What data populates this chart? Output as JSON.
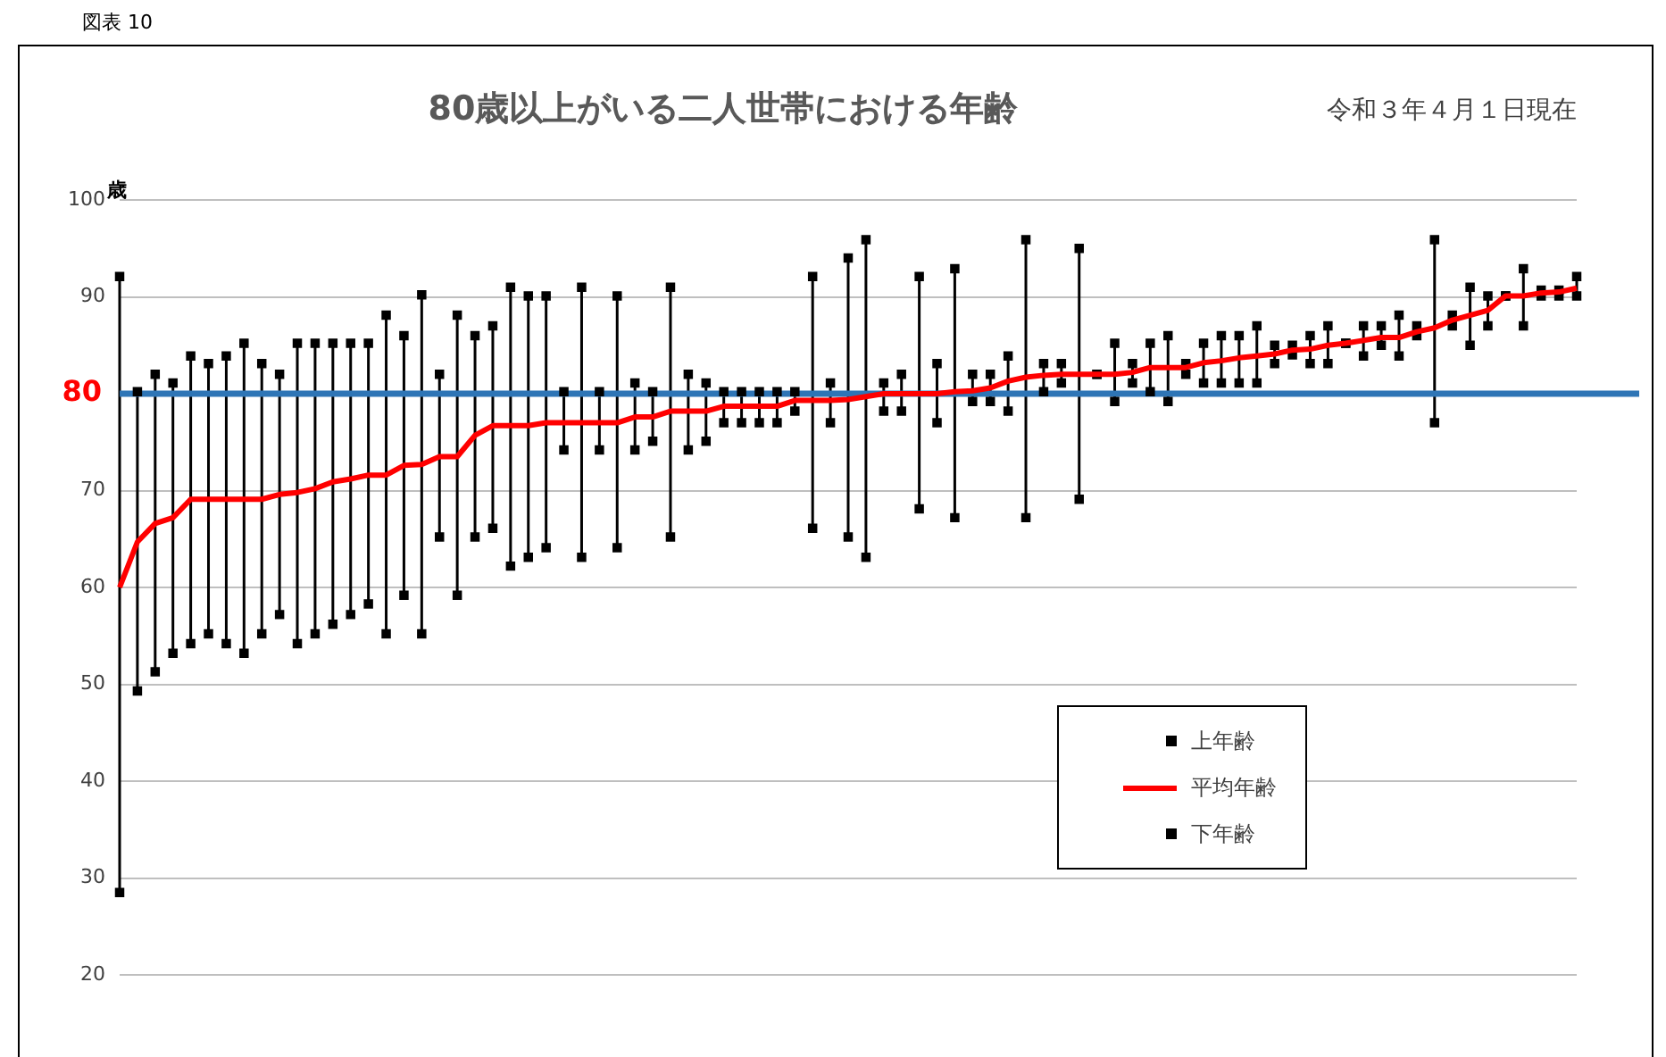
{
  "chart_data": {
    "type": "line",
    "title": "80歳以上がいる二人世帯における年齢",
    "subtitle": "令和３年４月１日現在",
    "ylabel": "歳",
    "annotations": [
      "図表 10"
    ],
    "categories": [
      null,
      null,
      null,
      null,
      null,
      null,
      null,
      null,
      null,
      null,
      null,
      null,
      null,
      null,
      null,
      null,
      null,
      null,
      null,
      null,
      null,
      null,
      null,
      null,
      null,
      null,
      null,
      null,
      null,
      null,
      null,
      null,
      null,
      null,
      null,
      null,
      null,
      null,
      null,
      null,
      null,
      null,
      null,
      null,
      null,
      null,
      null,
      null,
      null,
      null,
      null,
      null,
      null,
      null,
      null,
      null,
      null,
      null,
      null,
      null,
      null,
      null,
      null,
      null,
      null,
      null,
      null,
      null,
      null,
      null,
      null,
      null,
      null,
      null,
      null,
      null,
      null,
      null,
      null,
      null,
      null,
      null,
      null
    ],
    "series": [
      {
        "name": "上年齢",
        "type": "scatter",
        "marker": "square",
        "color": "#000000",
        "values": [
          92.1,
          80.2,
          82,
          81.1,
          83.9,
          83.1,
          83.9,
          85.2,
          83.1,
          82,
          85.2,
          85.2,
          85.2,
          85.2,
          85.2,
          88.1,
          86,
          90.2,
          82,
          88.1,
          86,
          87,
          91,
          90.1,
          90.1,
          80.2,
          91,
          80.2,
          90.1,
          81.1,
          80.2,
          91,
          82,
          81.1,
          80.2,
          80.2,
          80.2,
          80.2,
          80.2,
          92.1,
          81.1,
          94,
          95.9,
          81.1,
          82,
          92.1,
          83.1,
          92.9,
          82,
          82,
          83.9,
          95.9,
          83.1,
          83.1,
          95,
          82,
          85.2,
          83.1,
          85.2,
          86,
          83.1,
          85.2,
          86,
          86,
          87,
          85,
          85,
          86,
          87,
          85.2,
          87,
          87,
          88.1,
          87,
          95.9,
          88.1,
          91,
          90.1,
          90.1,
          92.9,
          90.7,
          90.7,
          92.1
        ]
      },
      {
        "name": "平均年齢",
        "marker": "none",
        "color": "#ff0000",
        "values": [
          60,
          64.7,
          66.6,
          67.2,
          69.1,
          69.1,
          69.1,
          69.1,
          69.1,
          69.6,
          69.8,
          70.2,
          70.9,
          71.2,
          71.6,
          71.6,
          72.6,
          72.7,
          73.5,
          73.5,
          75.7,
          76.7,
          76.7,
          76.7,
          77,
          77,
          77,
          77,
          77,
          77.6,
          77.6,
          78.2,
          78.2,
          78.2,
          78.7,
          78.7,
          78.7,
          78.7,
          79.3,
          79.3,
          79.3,
          79.4,
          79.7,
          80,
          80,
          80,
          80,
          80.2,
          80.3,
          80.6,
          81.3,
          81.7,
          81.9,
          82,
          82,
          82,
          82,
          82.2,
          82.7,
          82.7,
          82.7,
          83.2,
          83.4,
          83.7,
          83.9,
          84.1,
          84.5,
          84.6,
          85,
          85.2,
          85.5,
          85.8,
          85.8,
          86.4,
          86.8,
          87.6,
          88.1,
          88.6,
          90.1,
          90.1,
          90.4,
          90.5,
          90.9
        ]
      },
      {
        "name": "下年齢",
        "type": "scatter",
        "marker": "square",
        "color": "#000000",
        "values": [
          28.5,
          49.3,
          51.3,
          53.2,
          54.2,
          55.2,
          54.2,
          53.2,
          55.2,
          57.2,
          54.2,
          55.2,
          56.2,
          57.2,
          58.3,
          55.2,
          59.2,
          55.2,
          65.2,
          59.2,
          65.2,
          66.1,
          62.2,
          63.1,
          64.1,
          74.2,
          63.1,
          74.2,
          64.1,
          74.2,
          75.1,
          65.2,
          74.2,
          75.1,
          77,
          77,
          77,
          77,
          78.2,
          66.1,
          77,
          65.2,
          63.1,
          78.2,
          78.2,
          68.1,
          77,
          67.2,
          79.2,
          79.2,
          78.2,
          67.2,
          80.2,
          81.1,
          69.1,
          82,
          79.2,
          81.1,
          80.2,
          79.2,
          82,
          81.1,
          81.1,
          81.1,
          81.1,
          83.1,
          84,
          83.1,
          83.1,
          85.2,
          83.9,
          85,
          83.9,
          86,
          77,
          87,
          85,
          87,
          90.1,
          87,
          90.1,
          90.1,
          90.1
        ]
      }
    ],
    "ylim": [
      20,
      100
    ],
    "yticks": [
      20,
      30,
      40,
      50,
      60,
      70,
      {
        "value": 80,
        "label": null
      },
      90,
      100
    ],
    "ref_lines": [
      {
        "axis": "y",
        "value": 80,
        "label": "80",
        "color": "#2e75b6"
      }
    ],
    "grid": "y",
    "legend": "bottom right"
  }
}
